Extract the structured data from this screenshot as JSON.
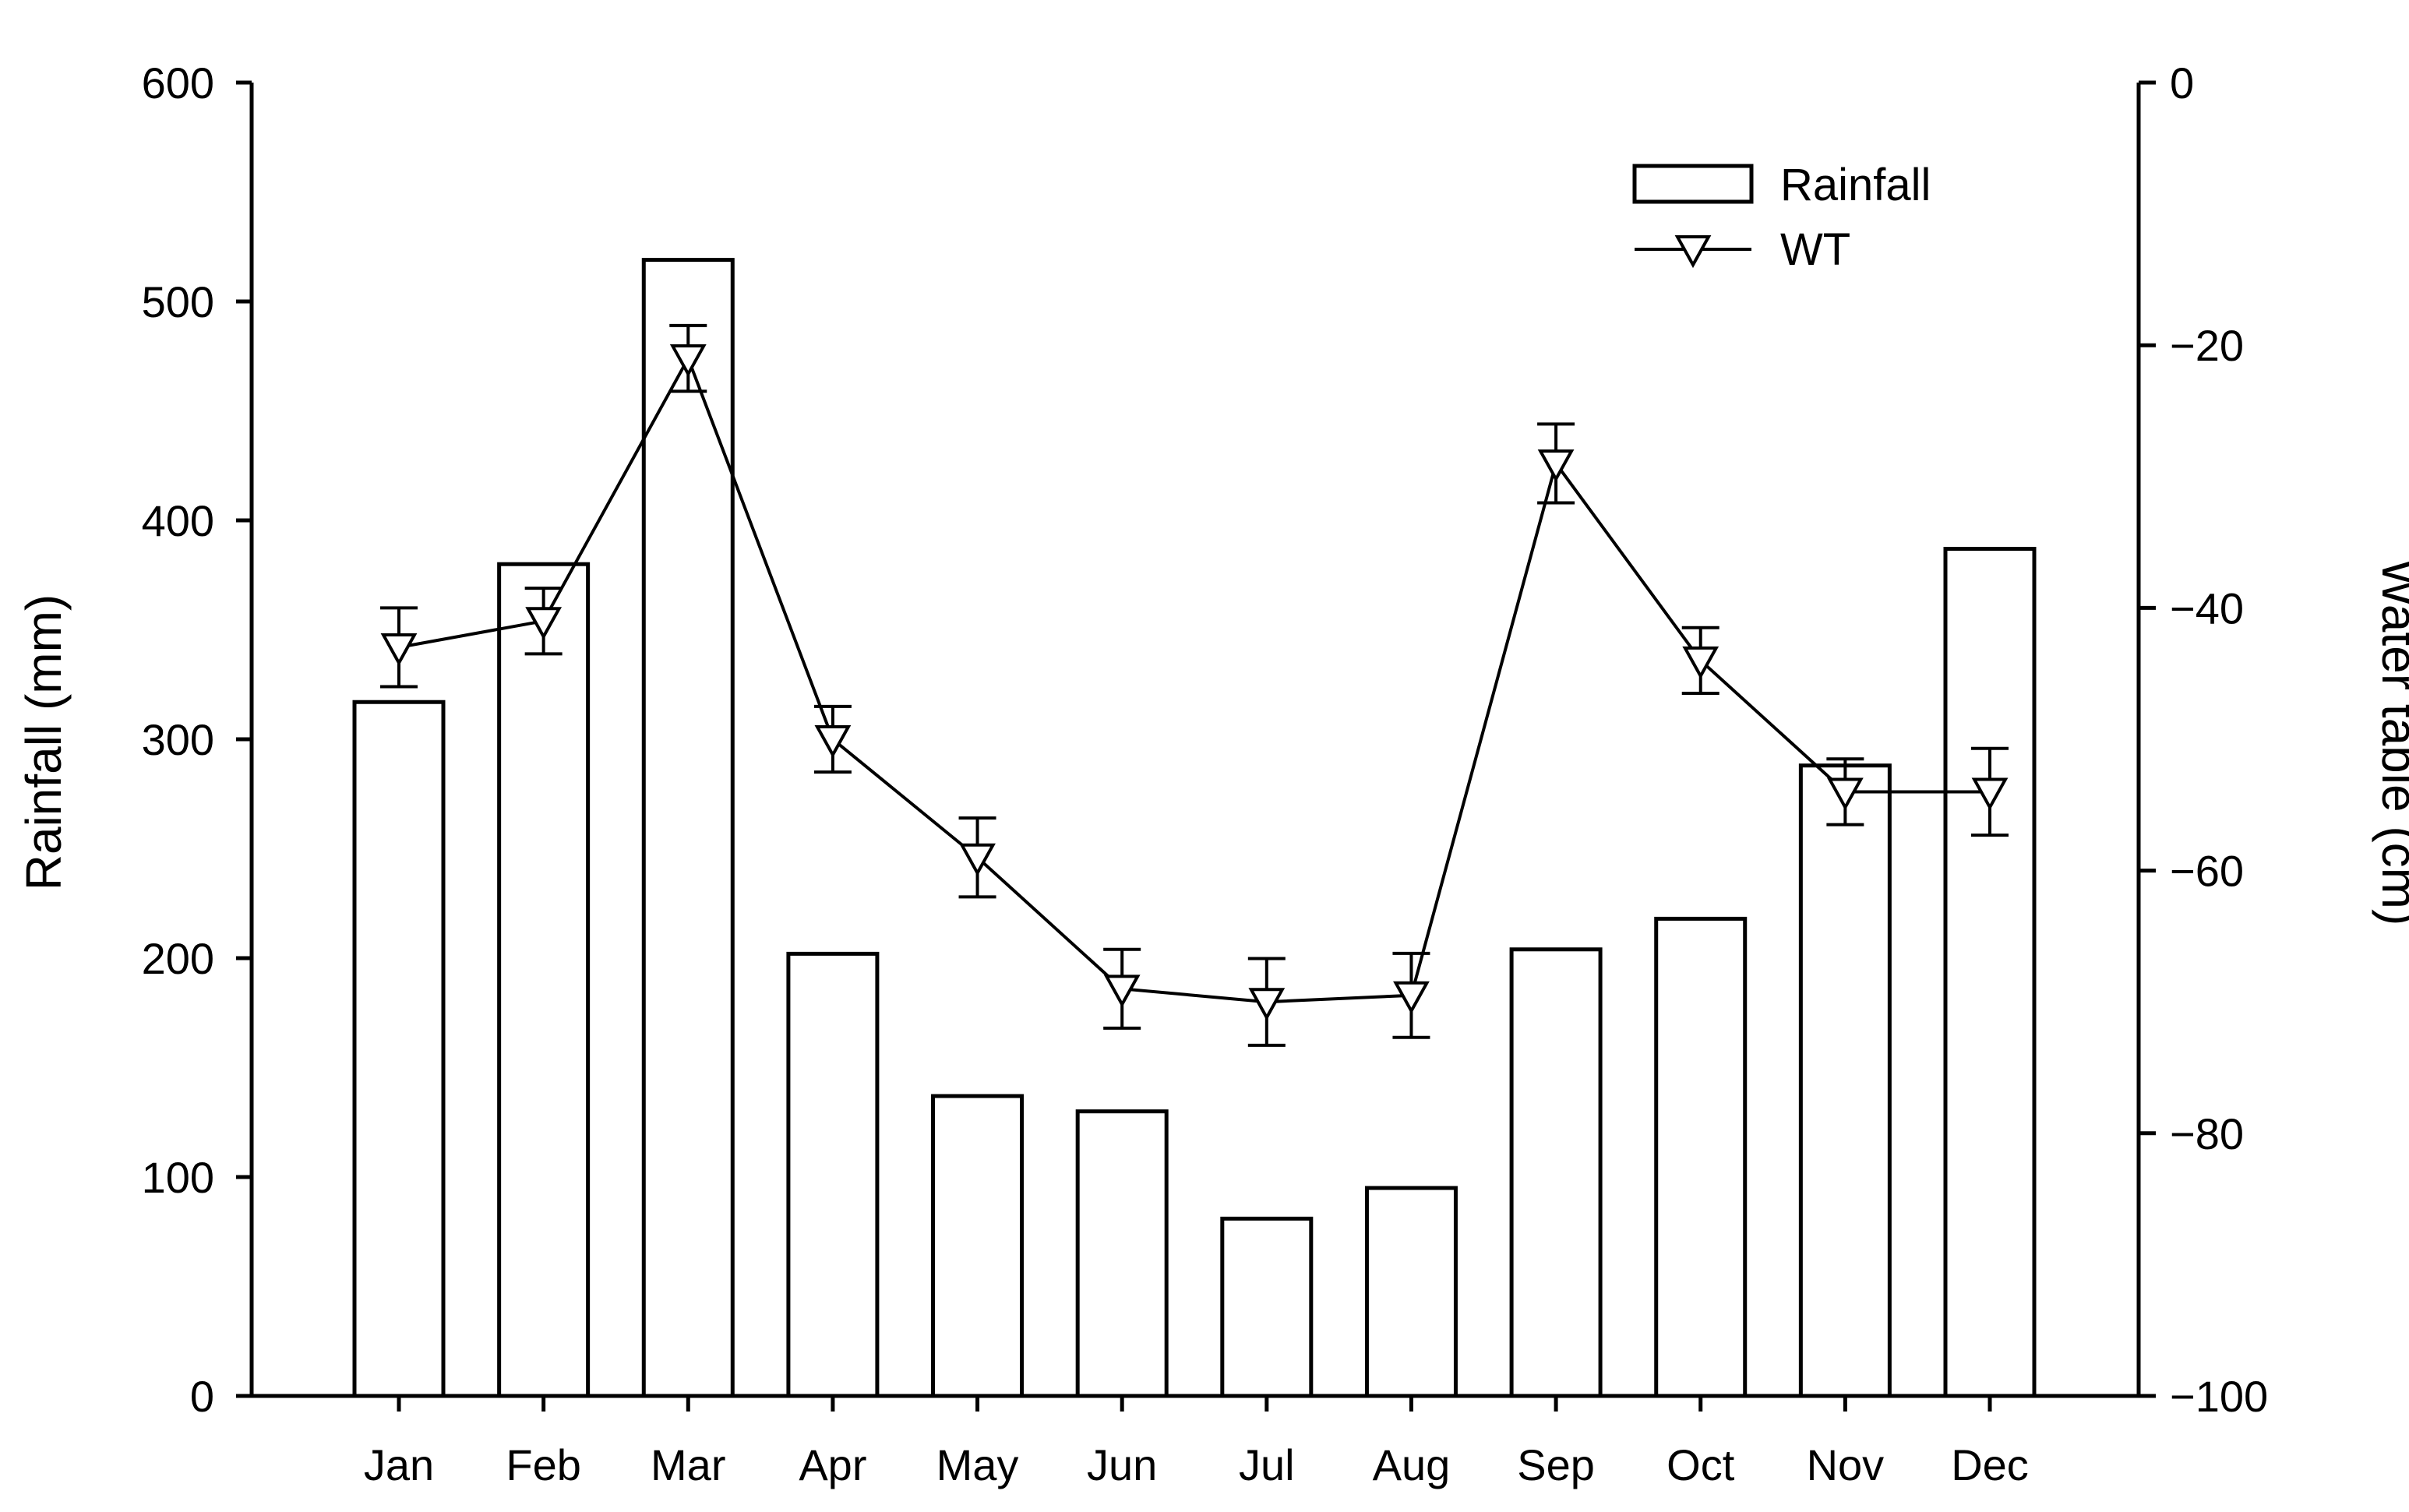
{
  "chart_data": {
    "type": "bar",
    "categories": [
      "Jan",
      "Feb",
      "Mar",
      "Apr",
      "May",
      "Jun",
      "Jul",
      "Aug",
      "Sep",
      "Oct",
      "Nov",
      "Dec"
    ],
    "series": [
      {
        "name": "Rainfall",
        "kind": "bar",
        "axis": "left",
        "values": [
          317,
          380,
          519,
          202,
          137,
          130,
          81,
          95,
          204,
          218,
          288,
          387
        ]
      },
      {
        "name": "WT",
        "kind": "line",
        "axis": "right",
        "marker": "inverted-triangle",
        "values": [
          -43,
          -41,
          -21,
          -50,
          -59,
          -69,
          -70,
          -69.5,
          -29,
          -44,
          -54,
          -54
        ],
        "error": [
          3,
          2.5,
          2.5,
          2.5,
          3,
          3,
          3.3,
          3.2,
          3,
          2.5,
          2.5,
          3.3
        ]
      }
    ],
    "ylabel": "Rainfall (mm)",
    "y2label": "Water table (cm)",
    "ylim": [
      0,
      600
    ],
    "y2lim": [
      -100,
      0
    ],
    "yticks": [
      "0",
      "100",
      "200",
      "300",
      "400",
      "500",
      "600"
    ],
    "y2ticks": [
      "−100",
      "−80",
      "−60",
      "−40",
      "−20",
      "0"
    ],
    "legend": {
      "position": "top-right",
      "entries": [
        "Rainfall",
        "WT"
      ]
    }
  }
}
